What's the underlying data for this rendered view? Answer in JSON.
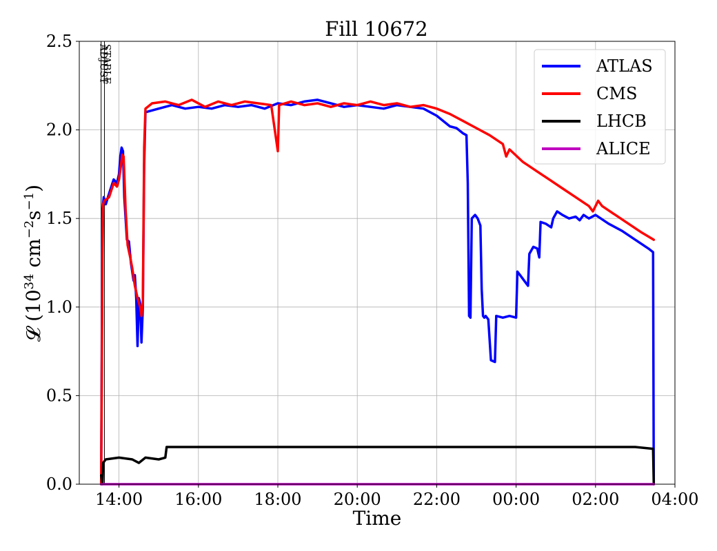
{
  "chart_data": {
    "type": "line",
    "title": "Fill 10672",
    "xlabel": "Time",
    "ylabel": "𝓛 (10³⁴ cm⁻²s⁻¹)",
    "ylabel_parts": {
      "prefix": "𝓛 (10",
      "exp1": "34",
      "mid": " cm",
      "exp2": "−2",
      "mid2": "s",
      "exp3": "−1",
      "suffix": ")"
    },
    "xlim": [
      "13:00",
      "04:00"
    ],
    "ylim": [
      0,
      2.5
    ],
    "xticks": [
      "14:00",
      "16:00",
      "18:00",
      "20:00",
      "22:00",
      "00:00",
      "02:00",
      "04:00"
    ],
    "yticks": [
      "0.0",
      "0.5",
      "1.0",
      "1.5",
      "2.0",
      "2.5"
    ],
    "grid": true,
    "legend_position": "top-right",
    "markers": [
      {
        "label": "ADJUST",
        "time": "13:33"
      },
      {
        "label": "STABLE",
        "time": "13:38"
      }
    ],
    "series": [
      {
        "name": "ATLAS",
        "color": "#0000ff",
        "points": [
          [
            "13:33",
            0.0
          ],
          [
            "13:35",
            1.55
          ],
          [
            "13:37",
            1.62
          ],
          [
            "13:40",
            1.58
          ],
          [
            "13:45",
            1.64
          ],
          [
            "13:52",
            1.72
          ],
          [
            "13:57",
            1.7
          ],
          [
            "14:00",
            1.75
          ],
          [
            "14:02",
            1.85
          ],
          [
            "14:04",
            1.9
          ],
          [
            "14:06",
            1.88
          ],
          [
            "14:08",
            1.62
          ],
          [
            "14:12",
            1.38
          ],
          [
            "14:15",
            1.37
          ],
          [
            "14:18",
            1.25
          ],
          [
            "14:22",
            1.15
          ],
          [
            "14:24",
            1.18
          ],
          [
            "14:26",
            1.05
          ],
          [
            "14:28",
            0.78
          ],
          [
            "14:30",
            1.05
          ],
          [
            "14:32",
            1.02
          ],
          [
            "14:34",
            0.8
          ],
          [
            "14:36",
            1.0
          ],
          [
            "14:38",
            1.8
          ],
          [
            "14:40",
            2.1
          ],
          [
            "15:00",
            2.12
          ],
          [
            "15:20",
            2.14
          ],
          [
            "15:40",
            2.12
          ],
          [
            "16:00",
            2.13
          ],
          [
            "16:20",
            2.12
          ],
          [
            "16:40",
            2.14
          ],
          [
            "17:00",
            2.13
          ],
          [
            "17:20",
            2.14
          ],
          [
            "17:40",
            2.12
          ],
          [
            "18:00",
            2.15
          ],
          [
            "18:20",
            2.14
          ],
          [
            "18:40",
            2.16
          ],
          [
            "19:00",
            2.17
          ],
          [
            "19:20",
            2.15
          ],
          [
            "19:40",
            2.13
          ],
          [
            "20:00",
            2.14
          ],
          [
            "20:20",
            2.13
          ],
          [
            "20:40",
            2.12
          ],
          [
            "21:00",
            2.14
          ],
          [
            "21:20",
            2.13
          ],
          [
            "21:40",
            2.12
          ],
          [
            "22:00",
            2.08
          ],
          [
            "22:10",
            2.05
          ],
          [
            "22:20",
            2.02
          ],
          [
            "22:30",
            2.01
          ],
          [
            "22:40",
            1.98
          ],
          [
            "22:45",
            1.97
          ],
          [
            "22:47",
            1.7
          ],
          [
            "22:49",
            0.95
          ],
          [
            "22:51",
            0.94
          ],
          [
            "22:53",
            1.5
          ],
          [
            "22:58",
            1.52
          ],
          [
            "23:02",
            1.5
          ],
          [
            "23:06",
            1.46
          ],
          [
            "23:08",
            1.1
          ],
          [
            "23:10",
            0.95
          ],
          [
            "23:12",
            0.94
          ],
          [
            "23:14",
            0.95
          ],
          [
            "23:18",
            0.93
          ],
          [
            "23:22",
            0.7
          ],
          [
            "23:28",
            0.69
          ],
          [
            "23:30",
            0.95
          ],
          [
            "23:40",
            0.94
          ],
          [
            "23:50",
            0.95
          ],
          [
            "00:00",
            0.94
          ],
          [
            "00:02",
            1.2
          ],
          [
            "00:06",
            1.18
          ],
          [
            "00:12",
            1.15
          ],
          [
            "00:18",
            1.12
          ],
          [
            "00:20",
            1.3
          ],
          [
            "00:26",
            1.34
          ],
          [
            "00:32",
            1.33
          ],
          [
            "00:35",
            1.28
          ],
          [
            "00:37",
            1.48
          ],
          [
            "00:45",
            1.47
          ],
          [
            "00:53",
            1.45
          ],
          [
            "00:56",
            1.5
          ],
          [
            "01:02",
            1.54
          ],
          [
            "01:10",
            1.52
          ],
          [
            "01:20",
            1.5
          ],
          [
            "01:30",
            1.51
          ],
          [
            "01:36",
            1.49
          ],
          [
            "01:42",
            1.52
          ],
          [
            "01:50",
            1.5
          ],
          [
            "02:00",
            1.52
          ],
          [
            "02:20",
            1.47
          ],
          [
            "02:40",
            1.43
          ],
          [
            "03:00",
            1.38
          ],
          [
            "03:20",
            1.33
          ],
          [
            "03:27",
            1.31
          ],
          [
            "03:28",
            0.0
          ]
        ]
      },
      {
        "name": "CMS",
        "color": "#ff0000",
        "points": [
          [
            "13:33",
            0.0
          ],
          [
            "13:35",
            1.3
          ],
          [
            "13:36",
            1.58
          ],
          [
            "13:38",
            1.6
          ],
          [
            "13:45",
            1.62
          ],
          [
            "13:52",
            1.7
          ],
          [
            "13:57",
            1.68
          ],
          [
            "14:00",
            1.72
          ],
          [
            "14:03",
            1.8
          ],
          [
            "14:05",
            1.86
          ],
          [
            "14:07",
            1.85
          ],
          [
            "14:10",
            1.55
          ],
          [
            "14:13",
            1.35
          ],
          [
            "14:17",
            1.28
          ],
          [
            "14:20",
            1.22
          ],
          [
            "14:24",
            1.12
          ],
          [
            "14:28",
            1.05
          ],
          [
            "14:32",
            1.0
          ],
          [
            "14:34",
            0.95
          ],
          [
            "14:36",
            1.02
          ],
          [
            "14:38",
            1.9
          ],
          [
            "14:40",
            2.12
          ],
          [
            "14:50",
            2.15
          ],
          [
            "15:10",
            2.16
          ],
          [
            "15:30",
            2.14
          ],
          [
            "15:50",
            2.17
          ],
          [
            "16:10",
            2.13
          ],
          [
            "16:30",
            2.16
          ],
          [
            "16:50",
            2.14
          ],
          [
            "17:10",
            2.16
          ],
          [
            "17:30",
            2.15
          ],
          [
            "17:50",
            2.14
          ],
          [
            "18:00",
            1.88
          ],
          [
            "18:02",
            2.14
          ],
          [
            "18:20",
            2.16
          ],
          [
            "18:40",
            2.14
          ],
          [
            "19:00",
            2.15
          ],
          [
            "19:20",
            2.13
          ],
          [
            "19:40",
            2.15
          ],
          [
            "20:00",
            2.14
          ],
          [
            "20:20",
            2.16
          ],
          [
            "20:40",
            2.14
          ],
          [
            "21:00",
            2.15
          ],
          [
            "21:20",
            2.13
          ],
          [
            "21:40",
            2.14
          ],
          [
            "22:00",
            2.12
          ],
          [
            "22:20",
            2.09
          ],
          [
            "22:40",
            2.05
          ],
          [
            "23:00",
            2.01
          ],
          [
            "23:20",
            1.97
          ],
          [
            "23:40",
            1.92
          ],
          [
            "23:45",
            1.85
          ],
          [
            "23:50",
            1.89
          ],
          [
            "00:10",
            1.82
          ],
          [
            "00:30",
            1.77
          ],
          [
            "00:50",
            1.72
          ],
          [
            "01:10",
            1.67
          ],
          [
            "01:30",
            1.62
          ],
          [
            "01:50",
            1.57
          ],
          [
            "01:56",
            1.54
          ],
          [
            "02:04",
            1.6
          ],
          [
            "02:10",
            1.57
          ],
          [
            "02:30",
            1.52
          ],
          [
            "02:50",
            1.47
          ],
          [
            "03:10",
            1.42
          ],
          [
            "03:28",
            1.38
          ]
        ]
      },
      {
        "name": "LHCB",
        "color": "#000000",
        "points": [
          [
            "13:33",
            0.05
          ],
          [
            "13:35",
            0.0
          ],
          [
            "13:36",
            0.12
          ],
          [
            "13:40",
            0.14
          ],
          [
            "14:00",
            0.15
          ],
          [
            "14:20",
            0.14
          ],
          [
            "14:30",
            0.12
          ],
          [
            "14:40",
            0.15
          ],
          [
            "15:00",
            0.14
          ],
          [
            "15:10",
            0.15
          ],
          [
            "15:12",
            0.21
          ],
          [
            "15:30",
            0.21
          ],
          [
            "16:00",
            0.21
          ],
          [
            "17:00",
            0.21
          ],
          [
            "18:00",
            0.21
          ],
          [
            "19:00",
            0.21
          ],
          [
            "20:00",
            0.21
          ],
          [
            "21:00",
            0.21
          ],
          [
            "22:00",
            0.21
          ],
          [
            "23:00",
            0.21
          ],
          [
            "00:00",
            0.21
          ],
          [
            "01:00",
            0.21
          ],
          [
            "02:00",
            0.21
          ],
          [
            "03:00",
            0.21
          ],
          [
            "03:27",
            0.2
          ],
          [
            "03:28",
            0.0
          ]
        ]
      },
      {
        "name": "ALICE",
        "color": "#bf00bf",
        "points": [
          [
            "13:33",
            0.0
          ],
          [
            "03:28",
            0.0
          ]
        ]
      }
    ]
  }
}
